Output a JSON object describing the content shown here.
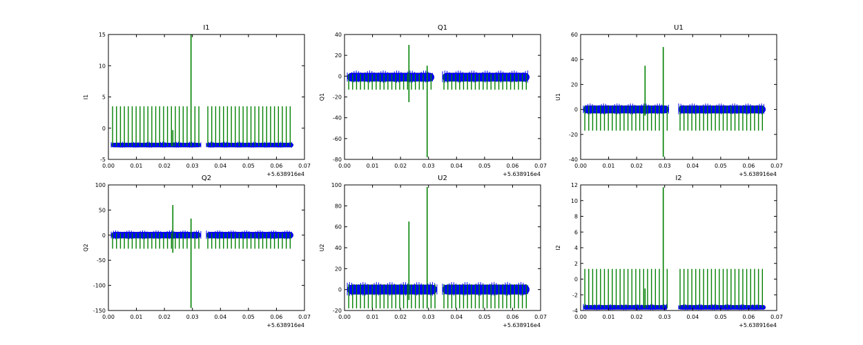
{
  "figure": {
    "type": "multi-panel line plot",
    "colors": {
      "series_blue": "#0000ff",
      "series_green": "#008000",
      "axes": "#000000",
      "background": "#ffffff"
    },
    "x_offset_label": "+5.638916e4"
  },
  "chart_data": [
    {
      "type": "line",
      "title": "I1",
      "ylabel": "I1",
      "xlim": [
        0.0,
        0.07
      ],
      "ylim": [
        -5,
        15
      ],
      "xticks": [
        "0.00",
        "0.01",
        "0.02",
        "0.03",
        "0.04",
        "0.05",
        "0.06",
        "0.07"
      ],
      "yticks": [
        -5,
        0,
        5,
        10,
        15
      ],
      "series": [
        {
          "name": "blue",
          "baseline": -2.7,
          "band": 0.3,
          "segments": [
            [
              0.001,
              0.033
            ],
            [
              0.035,
              0.066
            ]
          ]
        },
        {
          "name": "green",
          "spike_top": 3.5,
          "spike_bottom": -2.9,
          "spikes": [
            {
              "x": 0.0295,
              "top": 15,
              "bottom": -2.9
            },
            {
              "x": 0.023,
              "top": -0.3,
              "bottom": -2.9
            }
          ]
        }
      ]
    },
    {
      "type": "line",
      "title": "Q1",
      "ylabel": "Q1",
      "xlim": [
        0.0,
        0.07
      ],
      "ylim": [
        -80,
        40
      ],
      "xticks": [
        "0.00",
        "0.01",
        "0.02",
        "0.03",
        "0.04",
        "0.05",
        "0.06",
        "0.07"
      ],
      "yticks": [
        -80,
        -60,
        -40,
        -20,
        0,
        20,
        40
      ],
      "series": [
        {
          "name": "blue",
          "baseline": -1,
          "band": 4,
          "segments": [
            [
              0.001,
              0.032
            ],
            [
              0.035,
              0.066
            ]
          ]
        },
        {
          "name": "green",
          "spike_top": 2,
          "spike_bottom": -13,
          "spikes": [
            {
              "x": 0.023,
              "top": 30,
              "bottom": -25
            },
            {
              "x": 0.0295,
              "top": 10,
              "bottom": -78
            }
          ]
        }
      ]
    },
    {
      "type": "line",
      "title": "U1",
      "ylabel": "U1",
      "xlim": [
        0.0,
        0.07
      ],
      "ylim": [
        -40,
        60
      ],
      "xticks": [
        "0.00",
        "0.01",
        "0.02",
        "0.03",
        "0.04",
        "0.05",
        "0.06",
        "0.07"
      ],
      "yticks": [
        -40,
        -20,
        0,
        20,
        40,
        60
      ],
      "series": [
        {
          "name": "blue",
          "baseline": 0,
          "band": 3,
          "segments": [
            [
              0.001,
              0.0315
            ],
            [
              0.035,
              0.066
            ]
          ]
        },
        {
          "name": "green",
          "spike_top": 3,
          "spike_bottom": -17,
          "spikes": [
            {
              "x": 0.023,
              "top": 35,
              "bottom": -5
            },
            {
              "x": 0.0295,
              "top": 50,
              "bottom": -38
            }
          ]
        }
      ]
    },
    {
      "type": "line",
      "title": "Q2",
      "ylabel": "Q2",
      "xlim": [
        0.0,
        0.07
      ],
      "ylim": [
        -150,
        100
      ],
      "xticks": [
        "0.00",
        "0.01",
        "0.02",
        "0.03",
        "0.04",
        "0.05",
        "0.06",
        "0.07"
      ],
      "yticks": [
        -150,
        -100,
        -50,
        0,
        50,
        100
      ],
      "series": [
        {
          "name": "blue",
          "baseline": 0,
          "band": 6,
          "segments": [
            [
              0.001,
              0.033
            ],
            [
              0.035,
              0.066
            ]
          ]
        },
        {
          "name": "green",
          "spike_top": 4,
          "spike_bottom": -27,
          "spikes": [
            {
              "x": 0.023,
              "top": 60,
              "bottom": -35
            },
            {
              "x": 0.0295,
              "top": 33,
              "bottom": -145
            }
          ]
        }
      ]
    },
    {
      "type": "line",
      "title": "U2",
      "ylabel": "U2",
      "xlim": [
        0.0,
        0.07
      ],
      "ylim": [
        -20,
        100
      ],
      "xticks": [
        "0.00",
        "0.01",
        "0.02",
        "0.03",
        "0.04",
        "0.05",
        "0.06",
        "0.07"
      ],
      "yticks": [
        -20,
        0,
        20,
        40,
        60,
        80,
        100
      ],
      "series": [
        {
          "name": "blue",
          "baseline": 0,
          "band": 4.5,
          "segments": [
            [
              0.001,
              0.033
            ],
            [
              0.035,
              0.066
            ]
          ]
        },
        {
          "name": "green",
          "spike_top": 5,
          "spike_bottom": -18,
          "spikes": [
            {
              "x": 0.023,
              "top": 65,
              "bottom": -10
            },
            {
              "x": 0.0295,
              "top": 98,
              "bottom": -18
            }
          ]
        }
      ]
    },
    {
      "type": "line",
      "title": "I2",
      "ylabel": "I2",
      "xlim": [
        0.0,
        0.07
      ],
      "ylim": [
        -4,
        12
      ],
      "xticks": [
        "0.00",
        "0.01",
        "0.02",
        "0.03",
        "0.04",
        "0.05",
        "0.06",
        "0.07"
      ],
      "yticks": [
        -4,
        -2,
        0,
        2,
        4,
        6,
        8,
        10,
        12
      ],
      "series": [
        {
          "name": "blue",
          "baseline": -3.6,
          "band": 0.25,
          "segments": [
            [
              0.001,
              0.031
            ],
            [
              0.035,
              0.066
            ]
          ]
        },
        {
          "name": "green",
          "spike_top": 1.3,
          "spike_bottom": -3.7,
          "spikes": [
            {
              "x": 0.0295,
              "top": 11.7,
              "bottom": -3.7
            },
            {
              "x": 0.023,
              "top": -1.2,
              "bottom": -3.7
            }
          ]
        }
      ]
    }
  ]
}
